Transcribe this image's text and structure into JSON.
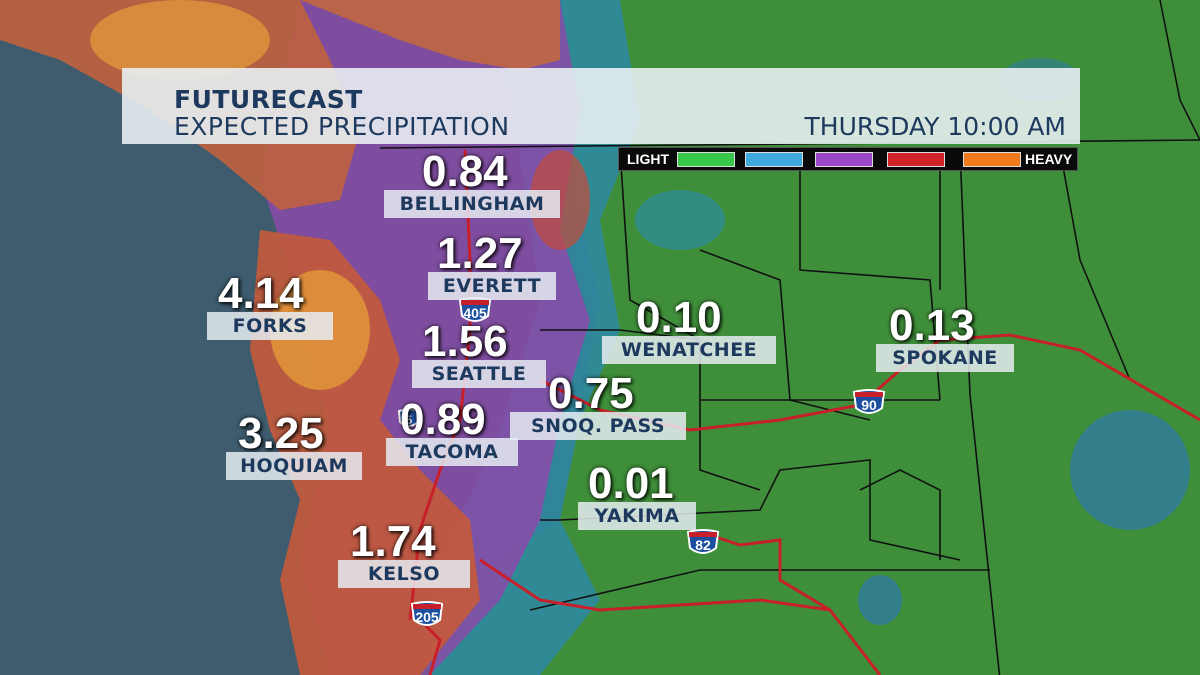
{
  "header": {
    "title": "FUTURECAST",
    "subtitle": "EXPECTED PRECIPITATION",
    "time": "THURSDAY 10:00 AM"
  },
  "legend": {
    "light_label": "LIGHT",
    "heavy_label": "HEAVY",
    "colors": [
      "#37c84a",
      "#3fa8dc",
      "#9b47c8",
      "#d0232a",
      "#f07a1a"
    ]
  },
  "cities": [
    {
      "name": "BELLINGHAM",
      "value": "0.84"
    },
    {
      "name": "EVERETT",
      "value": "1.27"
    },
    {
      "name": "FORKS",
      "value": "4.14"
    },
    {
      "name": "SEATTLE",
      "value": "1.56"
    },
    {
      "name": "WENATCHEE",
      "value": "0.10"
    },
    {
      "name": "SPOKANE",
      "value": "0.13"
    },
    {
      "name": "SNOQ. PASS",
      "value": "0.75"
    },
    {
      "name": "TACOMA",
      "value": "0.89"
    },
    {
      "name": "HOQUIAM",
      "value": "3.25"
    },
    {
      "name": "YAKIMA",
      "value": "0.01"
    },
    {
      "name": "KELSO",
      "value": "1.74"
    }
  ],
  "highways": {
    "i405": "405",
    "i90": "90",
    "i82": "82",
    "i205": "205",
    "i5": "5"
  }
}
